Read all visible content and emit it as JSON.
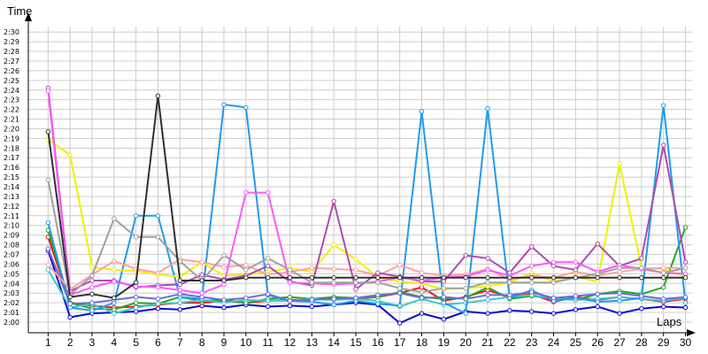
{
  "chart_data": {
    "type": "line",
    "ylabel": "Time",
    "xlabel": "Laps",
    "x": [
      1,
      2,
      3,
      4,
      5,
      6,
      7,
      8,
      9,
      10,
      11,
      12,
      13,
      14,
      15,
      16,
      17,
      18,
      19,
      20,
      21,
      22,
      23,
      24,
      25,
      26,
      27,
      28,
      29,
      30
    ],
    "xlim": [
      0.1,
      30.3
    ],
    "ylim": [
      118.9,
      151.3
    ],
    "y_ticks": [
      120,
      121,
      122,
      123,
      124,
      125,
      126,
      127,
      128,
      129,
      130,
      131,
      132,
      133,
      134,
      135,
      136,
      137,
      138,
      139,
      140,
      141,
      142,
      143,
      144,
      145,
      146,
      147,
      148,
      149,
      150
    ],
    "y_tick_labels": [
      "2:00",
      "2:01",
      "2:02",
      "2:03",
      "2:04",
      "2:05",
      "2:06",
      "2:07",
      "2:08",
      "2:09",
      "2:10",
      "2:11",
      "2:12",
      "2:13",
      "2:14",
      "2:15",
      "2:16",
      "2:17",
      "2:18",
      "2:19",
      "2:20",
      "2:21",
      "2:22",
      "2:23",
      "2:24",
      "2:25",
      "2:26",
      "2:27",
      "2:28",
      "2:29",
      "2:30"
    ],
    "grid": true,
    "series": [
      {
        "color": "#0a0ad0",
        "values": [
          127.4,
          120.5,
          120.9,
          121.0,
          121.1,
          121.4,
          121.3,
          121.7,
          121.5,
          121.8,
          121.6,
          121.7,
          121.6,
          121.8,
          122.0,
          121.8,
          119.9,
          120.9,
          120.3,
          121.1,
          120.9,
          121.2,
          121.1,
          120.9,
          121.3,
          121.6,
          120.9,
          121.4,
          121.6,
          121.5
        ]
      },
      {
        "color": "#ff1010",
        "values": [
          128.8,
          122.0,
          121.7,
          121.5,
          121.6,
          121.8,
          122.0,
          122.0,
          122.2,
          122.0,
          122.2,
          122.3,
          122.3,
          122.5,
          122.4,
          122.6,
          123.0,
          123.6,
          122.2,
          122.6,
          123.3,
          122.6,
          122.9,
          122.1,
          122.6,
          122.3,
          122.6,
          122.4,
          122.1,
          122.4
        ]
      },
      {
        "color": "#22a822",
        "values": [
          129.5,
          122.0,
          121.4,
          121.3,
          122.0,
          121.9,
          122.6,
          122.2,
          122.3,
          122.0,
          122.4,
          122.6,
          122.4,
          122.6,
          122.5,
          122.6,
          123.1,
          122.6,
          122.4,
          122.5,
          123.6,
          122.4,
          122.7,
          122.5,
          122.3,
          122.9,
          123.2,
          122.9,
          123.6,
          129.8
        ]
      },
      {
        "color": "#40c8c8",
        "values": [
          125.4,
          121.5,
          121.9,
          120.9,
          121.5,
          121.9,
          122.0,
          122.3,
          122.0,
          122.3,
          122.2,
          122.2,
          122.4,
          122.3,
          122.4,
          122.2,
          121.6,
          122.4,
          121.8,
          122.0,
          122.3,
          122.6,
          122.8,
          122.4,
          122.3,
          122.4,
          122.6,
          122.4,
          122.2,
          122.5
        ]
      },
      {
        "color": "#1e9bf0",
        "values": [
          130.3,
          121.5,
          121.2,
          122.0,
          131.0,
          131.0,
          122.6,
          122.4,
          142.5,
          142.2,
          122.8,
          122.2,
          122.1,
          121.8,
          122.2,
          121.9,
          121.7,
          141.8,
          122.0,
          120.9,
          142.1,
          122.5,
          123.3,
          122.2,
          122.5,
          122.1,
          122.2,
          122.5,
          142.4,
          122.0
        ]
      },
      {
        "color": "#6a6ae0",
        "values": [
          127.6,
          121.9,
          122.0,
          122.3,
          122.6,
          122.4,
          122.9,
          122.6,
          122.3,
          122.5,
          122.9,
          122.2,
          122.3,
          122.4,
          122.5,
          122.8,
          123.0,
          122.5,
          122.6,
          122.4,
          122.8,
          122.8,
          123.1,
          122.5,
          122.7,
          122.9,
          123.0,
          122.7,
          122.4,
          122.6
        ]
      },
      {
        "color": "#f0f000",
        "values": [
          138.9,
          137.3,
          125.7,
          125.4,
          125.3,
          124.9,
          124.7,
          126.2,
          124.8,
          124.9,
          125.2,
          125.6,
          125.2,
          128.0,
          126.5,
          124.6,
          124.2,
          124.0,
          123.4,
          123.5,
          123.7,
          124.1,
          125.1,
          124.2,
          124.7,
          124.2,
          136.4,
          125.6,
          125.5,
          124.7
        ]
      },
      {
        "color": "#ffa0a0",
        "values": [
          125.9,
          123.4,
          124.9,
          126.3,
          125.5,
          125.1,
          126.5,
          126.2,
          125.7,
          125.9,
          124.9,
          125.2,
          125.6,
          125.5,
          125.4,
          124.8,
          125.9,
          125.1,
          124.8,
          124.9,
          125.5,
          124.4,
          124.8,
          124.6,
          125.2,
          124.8,
          125.2,
          125.5,
          125.6,
          125.6
        ]
      },
      {
        "color": "#b04ab0",
        "values": [
          144.2,
          123.2,
          124.3,
          124.3,
          123.6,
          123.8,
          123.9,
          124.9,
          124.4,
          124.8,
          125.8,
          124.2,
          123.8,
          132.5,
          123.4,
          125.1,
          124.7,
          124.2,
          124.2,
          126.9,
          126.6,
          125.1,
          127.8,
          125.8,
          125.4,
          128.1,
          125.8,
          126.6,
          138.3,
          126.2
        ]
      },
      {
        "color": "#ff55ff",
        "values": [
          143.9,
          122.8,
          123.6,
          124.2,
          123.7,
          123.6,
          123.3,
          123.0,
          123.9,
          133.4,
          133.4,
          124.1,
          124.0,
          123.9,
          124.0,
          124.2,
          124.6,
          124.3,
          124.6,
          124.7,
          125.4,
          124.8,
          125.8,
          126.2,
          126.2,
          125.2,
          125.9,
          125.5,
          125.1,
          125.0
        ]
      },
      {
        "color": "#a0a0a0",
        "values": [
          134.7,
          122.8,
          124.8,
          130.7,
          128.8,
          128.8,
          126.3,
          124.3,
          126.9,
          125.4,
          126.6,
          125.4,
          124.1,
          124.1,
          124.1,
          124.1,
          123.5,
          123.1,
          123.5,
          123.5,
          124.1,
          124.1,
          124.1,
          124.1,
          124.6,
          125.0,
          125.6,
          125.6,
          125.1,
          125.6
        ]
      },
      {
        "color": "#303030",
        "values": [
          139.7,
          122.6,
          122.9,
          122.5,
          124.1,
          143.4,
          124.3,
          124.3,
          124.3,
          124.6,
          124.6,
          124.6,
          124.6,
          124.6,
          124.6,
          124.6,
          124.6,
          124.6,
          124.6,
          124.6,
          124.6,
          124.6,
          124.6,
          124.6,
          124.6,
          124.6,
          124.6,
          124.6,
          124.6,
          124.6
        ]
      }
    ]
  }
}
